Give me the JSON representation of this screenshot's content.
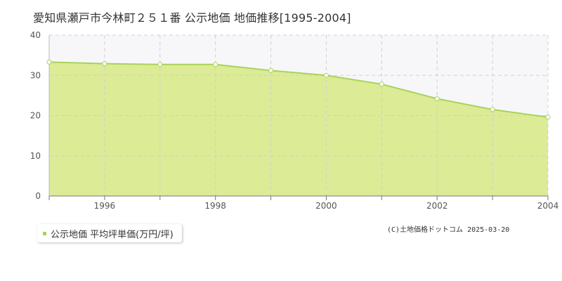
{
  "header": {
    "title": "愛知県瀬戸市今林町２５１番 公示地価 地価推移[1995-2004]"
  },
  "legend": {
    "label": "公示地価 平均坪単価(万円/坪)"
  },
  "footer": {
    "copyright": "(C)土地価格ドットコム 2025-03-20"
  },
  "colors": {
    "area_fill": "#dceb96",
    "line": "#a8d35a",
    "marker": "#a8d35a",
    "grid": "#d0d0d0",
    "axis": "#bbbbbb"
  },
  "chart_data": {
    "type": "area",
    "title": "",
    "xlabel": "",
    "ylabel": "",
    "x": [
      1995,
      1996,
      1997,
      1998,
      1999,
      2000,
      2001,
      2002,
      2003,
      2004
    ],
    "series": [
      {
        "name": "公示地価 平均坪単価(万円/坪)",
        "values": [
          33.3,
          32.9,
          32.7,
          32.7,
          31.2,
          30.0,
          27.8,
          24.2,
          21.5,
          19.6
        ]
      }
    ],
    "xlim": [
      1995,
      2004
    ],
    "ylim": [
      0,
      40
    ],
    "x_tick_labels": [
      "1996",
      "1998",
      "2000",
      "2002",
      "2004"
    ],
    "y_tick_labels": [
      "0",
      "10",
      "20",
      "30",
      "40"
    ],
    "grid": true,
    "legend_position": "bottom-left"
  }
}
